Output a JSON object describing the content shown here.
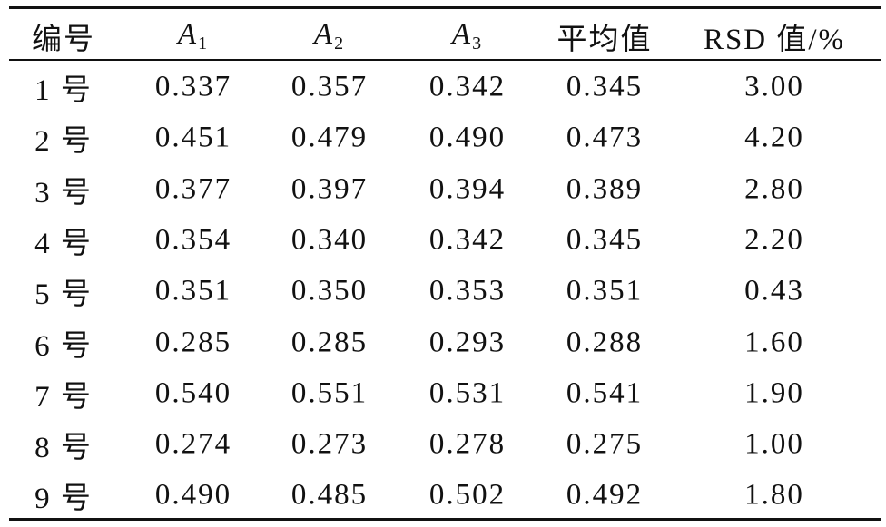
{
  "table": {
    "header": [
      "编号",
      {
        "text": "A",
        "sub": "1"
      },
      {
        "text": "A",
        "sub": "2"
      },
      {
        "text": "A",
        "sub": "3"
      },
      "平均值",
      "RSD 值/%"
    ],
    "rows": [
      [
        "1 号",
        "0.337",
        "0.357",
        "0.342",
        "0.345",
        "3.00"
      ],
      [
        "2 号",
        "0.451",
        "0.479",
        "0.490",
        "0.473",
        "4.20"
      ],
      [
        "3 号",
        "0.377",
        "0.397",
        "0.394",
        "0.389",
        "2.80"
      ],
      [
        "4 号",
        "0.354",
        "0.340",
        "0.342",
        "0.345",
        "2.20"
      ],
      [
        "5 号",
        "0.351",
        "0.350",
        "0.353",
        "0.351",
        "0.43"
      ],
      [
        "6 号",
        "0.285",
        "0.285",
        "0.293",
        "0.288",
        "1.60"
      ],
      [
        "7 号",
        "0.540",
        "0.551",
        "0.531",
        "0.541",
        "1.90"
      ],
      [
        "8 号",
        "0.274",
        "0.273",
        "0.278",
        "0.275",
        "1.00"
      ],
      [
        "9 号",
        "0.490",
        "0.485",
        "0.502",
        "0.492",
        "1.80"
      ]
    ]
  }
}
